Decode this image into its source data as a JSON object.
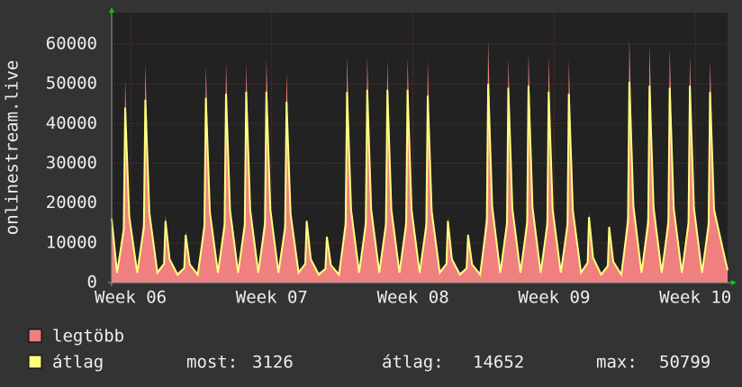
{
  "chart_data": {
    "type": "area-line",
    "ylabel": "onlinestream.live",
    "x": [
      -0.94,
      -0.67,
      -0.34,
      -0.27,
      -0.07,
      0.33,
      0.66,
      0.73,
      0.93,
      1.33,
      1.66,
      1.73,
      1.93,
      2.33,
      2.66,
      2.73,
      2.93,
      3.33,
      3.66,
      3.73,
      3.93,
      4.33,
      4.66,
      4.73,
      4.93,
      5.33,
      5.66,
      5.73,
      5.93,
      6.33,
      6.66,
      6.73,
      6.93,
      7.33,
      7.66,
      7.73,
      7.93,
      8.33,
      8.66,
      8.73,
      8.93,
      9.33,
      9.66,
      9.73,
      9.93,
      10.33,
      10.66,
      10.73,
      10.93,
      11.33,
      11.66,
      11.73,
      11.93,
      12.33,
      12.66,
      12.73,
      12.93,
      13.33,
      13.66,
      13.73,
      13.93,
      14.33,
      14.66,
      14.73,
      14.93,
      15.33,
      15.66,
      15.73,
      15.93,
      16.33,
      16.66,
      16.73,
      16.93,
      17.33,
      17.66,
      17.73,
      17.93,
      18.33,
      18.66,
      18.73,
      18.93,
      19.33,
      19.66,
      19.73,
      19.93,
      20.33,
      20.66,
      20.73,
      20.93,
      21.33,
      21.66,
      21.73,
      21.93,
      22.33,
      22.66,
      22.73,
      22.93,
      23.33,
      23.66,
      23.73,
      23.93,
      24.33,
      24.66,
      24.73,
      24.93,
      25.33,
      25.66,
      25.73,
      25.93,
      26.33,
      26.66,
      26.73,
      26.93,
      27.33,
      27.66,
      27.73,
      27.93,
      28.33,
      28.66,
      28.73,
      28.93,
      29.6
    ],
    "series": [
      {
        "name": "legtöbb",
        "color": "#f08080",
        "style": "area",
        "values": [
          18000,
          3000,
          15300,
          51000,
          17900,
          3000,
          16500,
          55000,
          19300,
          3000,
          5100,
          17000,
          6000,
          2500,
          3900,
          13000,
          4600,
          2500,
          16400,
          54500,
          19100,
          3000,
          16700,
          55500,
          19400,
          3000,
          16500,
          55000,
          19300,
          3000,
          17000,
          56500,
          19800,
          3000,
          15900,
          53000,
          18600,
          3000,
          4800,
          16000,
          5600,
          2500,
          3600,
          12000,
          4200,
          2500,
          17100,
          57000,
          20000,
          3000,
          17100,
          57000,
          20000,
          3000,
          16800,
          56000,
          19600,
          3000,
          17000,
          56500,
          19800,
          3000,
          16800,
          56000,
          19600,
          3000,
          5000,
          16500,
          5800,
          2500,
          3800,
          12500,
          4400,
          2500,
          18300,
          61000,
          21400,
          3000,
          17000,
          56500,
          19800,
          3000,
          17400,
          58000,
          20300,
          3000,
          17100,
          57000,
          20000,
          3000,
          16800,
          56000,
          19600,
          3000,
          5300,
          17500,
          6100,
          2500,
          4400,
          14500,
          5100,
          2500,
          18500,
          61500,
          21500,
          3000,
          18000,
          60000,
          21000,
          3000,
          17700,
          59000,
          20700,
          3000,
          17100,
          57000,
          20000,
          3000,
          16800,
          56000,
          19600,
          3300
        ]
      },
      {
        "name": "átlag",
        "color": "#ffff80",
        "style": "line",
        "values": [
          16000,
          2500,
          13200,
          44000,
          16700,
          2500,
          13800,
          46000,
          17500,
          2500,
          4700,
          15500,
          5900,
          2000,
          3600,
          12000,
          4600,
          2000,
          14000,
          46500,
          17700,
          2500,
          14300,
          47500,
          18100,
          2500,
          14400,
          48000,
          18200,
          2500,
          14400,
          48000,
          18200,
          2500,
          13700,
          45500,
          17300,
          2500,
          4700,
          15500,
          5900,
          2000,
          3500,
          11500,
          4400,
          2000,
          14400,
          48000,
          18200,
          2500,
          14600,
          48500,
          18400,
          2500,
          14600,
          48500,
          18400,
          2500,
          14600,
          48500,
          18400,
          2500,
          14100,
          47000,
          17900,
          2500,
          4700,
          15500,
          5900,
          2000,
          3600,
          12000,
          4600,
          2000,
          15000,
          50000,
          19000,
          2500,
          14700,
          49000,
          18600,
          2500,
          14900,
          49500,
          18800,
          2500,
          14400,
          48000,
          18200,
          2500,
          14300,
          47500,
          18100,
          2500,
          5000,
          16500,
          6300,
          2000,
          4200,
          14000,
          5300,
          2000,
          15200,
          50500,
          19200,
          2500,
          14900,
          49500,
          18800,
          2500,
          14700,
          49000,
          18600,
          2500,
          14900,
          49500,
          18800,
          2500,
          14400,
          48000,
          18200,
          3126
        ]
      }
    ],
    "xlim": [
      -0.94,
      29.6
    ],
    "xticks": [
      {
        "value": 0,
        "label": "Week 06"
      },
      {
        "value": 7,
        "label": "Week 07"
      },
      {
        "value": 14,
        "label": "Week 08"
      },
      {
        "value": 21,
        "label": "Week 09"
      },
      {
        "value": 28,
        "label": "Week 10"
      }
    ],
    "ylim": [
      0,
      67900
    ],
    "yticks": [
      0,
      10000,
      20000,
      30000,
      40000,
      50000,
      60000
    ],
    "grid": true,
    "stats": [
      {
        "label": "most:",
        "value": 3126
      },
      {
        "label": "átlag:",
        "value": 14652
      },
      {
        "label": "max:",
        "value": 50799
      }
    ]
  }
}
